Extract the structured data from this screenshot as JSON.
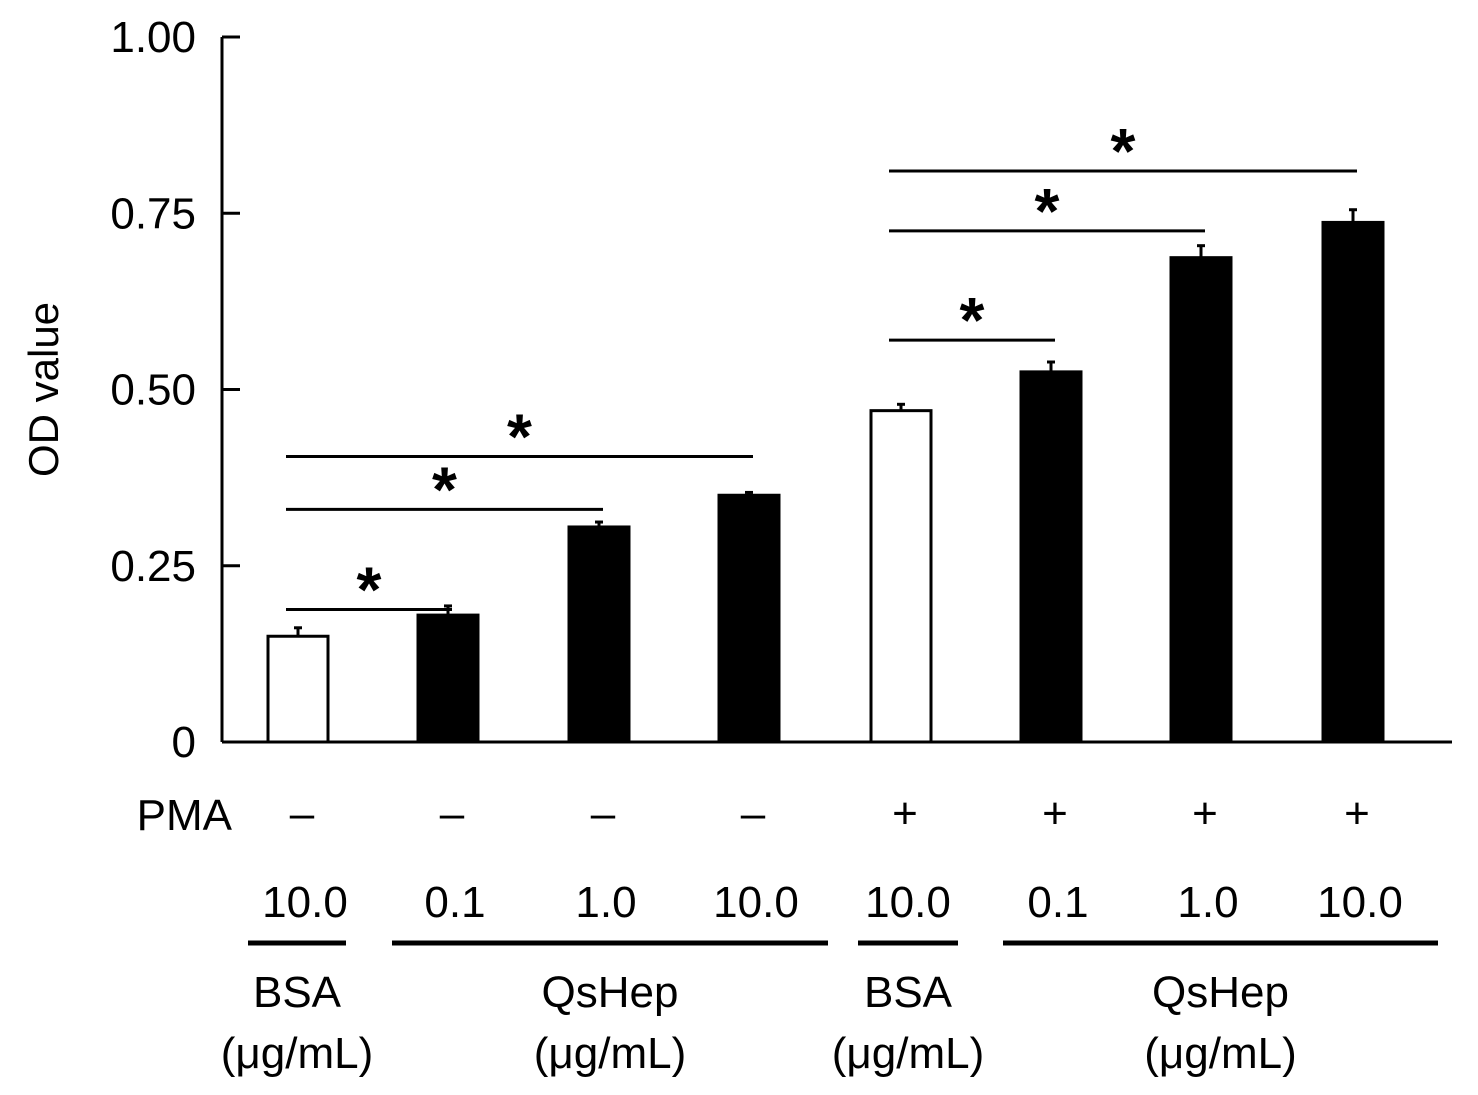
{
  "chart_data": {
    "type": "bar",
    "title": "",
    "xlabel": "",
    "ylabel": "OD value",
    "ylim": [
      0,
      1.0
    ],
    "yticks": [
      "0",
      "0.25",
      "0.50",
      "0.75",
      "1.00"
    ],
    "ytick_values": [
      0,
      0.25,
      0.5,
      0.75,
      1.0
    ],
    "grid": false,
    "bars": [
      {
        "pma": "–",
        "conc": "10.0",
        "agent": "BSA",
        "value": 0.15,
        "error": 0.012,
        "fill": "#ffffff"
      },
      {
        "pma": "–",
        "conc": "0.1",
        "agent": "QsHep",
        "value": 0.18,
        "error": 0.013,
        "fill": "#000000"
      },
      {
        "pma": "–",
        "conc": "1.0",
        "agent": "QsHep",
        "value": 0.305,
        "error": 0.007,
        "fill": "#000000"
      },
      {
        "pma": "–",
        "conc": "10.0",
        "agent": "QsHep",
        "value": 0.35,
        "error": 0.004,
        "fill": "#000000"
      },
      {
        "pma": "+",
        "conc": "10.0",
        "agent": "BSA",
        "value": 0.47,
        "error": 0.009,
        "fill": "#ffffff"
      },
      {
        "pma": "+",
        "conc": "0.1",
        "agent": "QsHep",
        "value": 0.525,
        "error": 0.014,
        "fill": "#000000"
      },
      {
        "pma": "+",
        "conc": "1.0",
        "agent": "QsHep",
        "value": 0.687,
        "error": 0.017,
        "fill": "#000000"
      },
      {
        "pma": "+",
        "conc": "10.0",
        "agent": "QsHep",
        "value": 0.737,
        "error": 0.018,
        "fill": "#000000"
      }
    ],
    "row_label": "PMA",
    "groups": [
      {
        "label": "BSA",
        "unit": "(μg/mL)",
        "bars": [
          0
        ]
      },
      {
        "label": "QsHep",
        "unit": "(μg/mL)",
        "bars": [
          1,
          2,
          3
        ]
      },
      {
        "label": "BSA",
        "unit": "(μg/mL)",
        "bars": [
          4
        ]
      },
      {
        "label": "QsHep",
        "unit": "(μg/mL)",
        "bars": [
          5,
          6,
          7
        ]
      }
    ],
    "significance": [
      {
        "from": 0,
        "to": 1,
        "level": 0.188,
        "label": "*"
      },
      {
        "from": 0,
        "to": 2,
        "level": 0.33,
        "label": "*"
      },
      {
        "from": 0,
        "to": 3,
        "level": 0.405,
        "label": "*"
      },
      {
        "from": 4,
        "to": 5,
        "level": 0.57,
        "label": "*"
      },
      {
        "from": 4,
        "to": 6,
        "level": 0.725,
        "label": "*"
      },
      {
        "from": 4,
        "to": 7,
        "level": 0.81,
        "label": "*"
      }
    ]
  }
}
